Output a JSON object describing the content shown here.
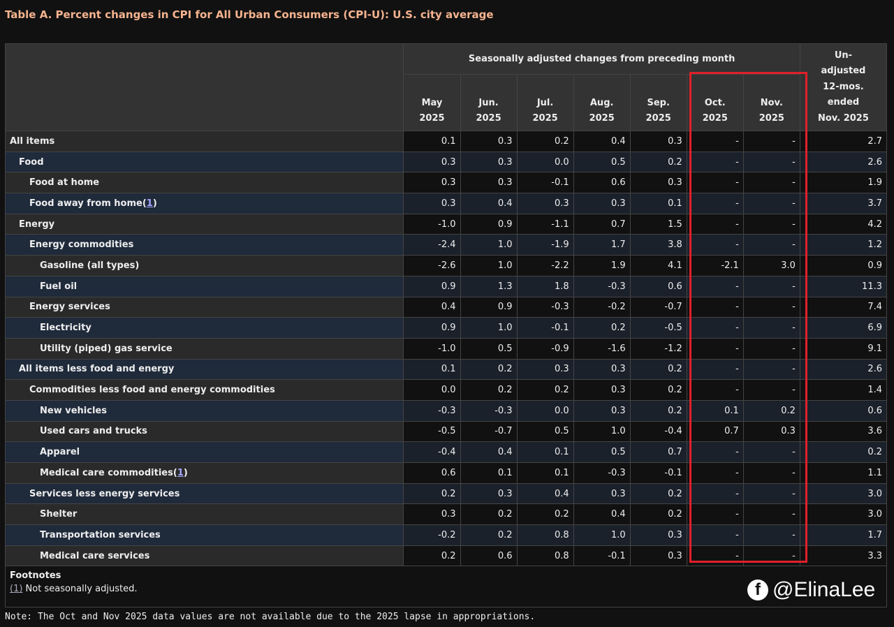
{
  "title": "Table A. Percent changes in CPI for All Urban Consumers (CPI-U): U.S. city average",
  "header": {
    "group": "Seasonally adjusted changes from preceding month",
    "months": [
      [
        "May",
        "2025"
      ],
      [
        "Jun.",
        "2025"
      ],
      [
        "Jul.",
        "2025"
      ],
      [
        "Aug.",
        "2025"
      ],
      [
        "Sep.",
        "2025"
      ],
      [
        "Oct.",
        "2025"
      ],
      [
        "Nov.",
        "2025"
      ]
    ],
    "unadjusted": [
      "Un-",
      "adjusted",
      "12-mos.",
      "ended",
      "Nov. 2025"
    ]
  },
  "rows": [
    {
      "label": "All items",
      "level": 0,
      "values": [
        "0.1",
        "0.3",
        "0.2",
        "0.4",
        "0.3",
        "-",
        "-",
        "2.7"
      ]
    },
    {
      "label": "Food",
      "level": 1,
      "values": [
        "0.3",
        "0.3",
        "0.0",
        "0.5",
        "0.2",
        "-",
        "-",
        "2.6"
      ]
    },
    {
      "label": "Food at home",
      "level": 2,
      "values": [
        "0.3",
        "0.3",
        "-0.1",
        "0.6",
        "0.3",
        "-",
        "-",
        "1.9"
      ]
    },
    {
      "label": "Food away from home",
      "level": 2,
      "fn": "1",
      "values": [
        "0.3",
        "0.4",
        "0.3",
        "0.3",
        "0.1",
        "-",
        "-",
        "3.7"
      ]
    },
    {
      "label": "Energy",
      "level": 1,
      "values": [
        "-1.0",
        "0.9",
        "-1.1",
        "0.7",
        "1.5",
        "-",
        "-",
        "4.2"
      ]
    },
    {
      "label": "Energy commodities",
      "level": 2,
      "values": [
        "-2.4",
        "1.0",
        "-1.9",
        "1.7",
        "3.8",
        "-",
        "-",
        "1.2"
      ]
    },
    {
      "label": "Gasoline (all types)",
      "level": 3,
      "values": [
        "-2.6",
        "1.0",
        "-2.2",
        "1.9",
        "4.1",
        "-2.1",
        "3.0",
        "0.9"
      ]
    },
    {
      "label": "Fuel oil",
      "level": 3,
      "values": [
        "0.9",
        "1.3",
        "1.8",
        "-0.3",
        "0.6",
        "-",
        "-",
        "11.3"
      ]
    },
    {
      "label": "Energy services",
      "level": 2,
      "values": [
        "0.4",
        "0.9",
        "-0.3",
        "-0.2",
        "-0.7",
        "-",
        "-",
        "7.4"
      ]
    },
    {
      "label": "Electricity",
      "level": 3,
      "values": [
        "0.9",
        "1.0",
        "-0.1",
        "0.2",
        "-0.5",
        "-",
        "-",
        "6.9"
      ]
    },
    {
      "label": "Utility (piped) gas service",
      "level": 3,
      "values": [
        "-1.0",
        "0.5",
        "-0.9",
        "-1.6",
        "-1.2",
        "-",
        "-",
        "9.1"
      ]
    },
    {
      "label": "All items less food and energy",
      "level": 1,
      "values": [
        "0.1",
        "0.2",
        "0.3",
        "0.3",
        "0.2",
        "-",
        "-",
        "2.6"
      ]
    },
    {
      "label": "Commodities less food and energy commodities",
      "level": 2,
      "values": [
        "0.0",
        "0.2",
        "0.2",
        "0.3",
        "0.2",
        "-",
        "-",
        "1.4"
      ]
    },
    {
      "label": "New vehicles",
      "level": 3,
      "values": [
        "-0.3",
        "-0.3",
        "0.0",
        "0.3",
        "0.2",
        "0.1",
        "0.2",
        "0.6"
      ]
    },
    {
      "label": "Used cars and trucks",
      "level": 3,
      "values": [
        "-0.5",
        "-0.7",
        "0.5",
        "1.0",
        "-0.4",
        "0.7",
        "0.3",
        "3.6"
      ]
    },
    {
      "label": "Apparel",
      "level": 3,
      "values": [
        "-0.4",
        "0.4",
        "0.1",
        "0.5",
        "0.7",
        "-",
        "-",
        "0.2"
      ]
    },
    {
      "label": "Medical care commodities",
      "level": 3,
      "fn": "1",
      "values": [
        "0.6",
        "0.1",
        "0.1",
        "-0.3",
        "-0.1",
        "-",
        "-",
        "1.1"
      ]
    },
    {
      "label": "Services less energy services",
      "level": 2,
      "values": [
        "0.2",
        "0.3",
        "0.4",
        "0.3",
        "0.2",
        "-",
        "-",
        "3.0"
      ]
    },
    {
      "label": "Shelter",
      "level": 3,
      "values": [
        "0.3",
        "0.2",
        "0.2",
        "0.4",
        "0.2",
        "-",
        "-",
        "3.0"
      ]
    },
    {
      "label": "Transportation services",
      "level": 3,
      "values": [
        "-0.2",
        "0.2",
        "0.8",
        "1.0",
        "0.3",
        "-",
        "-",
        "1.7"
      ]
    },
    {
      "label": "Medical care services",
      "level": 3,
      "values": [
        "0.2",
        "0.6",
        "0.8",
        "-0.1",
        "0.3",
        "-",
        "-",
        "3.3"
      ]
    }
  ],
  "footnotes": {
    "heading": "Footnotes",
    "items": [
      {
        "ref": "(1)",
        "text": " Not seasonally adjusted."
      }
    ]
  },
  "note": "Note: The Oct and Nov 2025 data values are not available due to the 2025 lapse in appropriations.",
  "watermark": {
    "icon": "facebook-icon",
    "handle": "@ElinaLee"
  },
  "colors": {
    "title": "#f5b38f",
    "highlight": "#e0202a"
  }
}
